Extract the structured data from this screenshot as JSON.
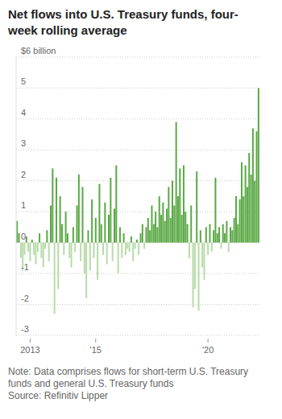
{
  "chart_data": {
    "type": "bar",
    "title": "Net flows into U.S. Treasury funds, four-week rolling average",
    "note": "Note: Data comprises flows for short-term U.S. Treasury funds and general U.S. Treasury funds",
    "source": "Source: Refinitiv Lipper",
    "categories": [
      null,
      null,
      null,
      null,
      null,
      null,
      null,
      "2013",
      null,
      null,
      null,
      null,
      null,
      null,
      null,
      null,
      null,
      null,
      null,
      null,
      null,
      null,
      null,
      null,
      null,
      null,
      null,
      null,
      null,
      null,
      null,
      null,
      null,
      null,
      null,
      null,
      null,
      null,
      null,
      null,
      null,
      null,
      "'15",
      null,
      null,
      null,
      null,
      null,
      null,
      null,
      null,
      null,
      null,
      null,
      null,
      null,
      null,
      null,
      null,
      null,
      null,
      null,
      null,
      null,
      null,
      null,
      null,
      null,
      null,
      null,
      null,
      null,
      null,
      null,
      null,
      null,
      null,
      null,
      null,
      null,
      null,
      null,
      null,
      null,
      null,
      null,
      null,
      null,
      null,
      null,
      null,
      null,
      null,
      null,
      null,
      null,
      null,
      null,
      null,
      null,
      null,
      null,
      "'20",
      null,
      null,
      null,
      null,
      null,
      null,
      null,
      null,
      null,
      null,
      null,
      null,
      null,
      null,
      null,
      null,
      null,
      null,
      null,
      null,
      null,
      null,
      null,
      null,
      null,
      null,
      null
    ],
    "values": [
      0.7,
      0.3,
      -0.5,
      -0.9,
      -0.4,
      0.2,
      -0.3,
      -0.6,
      0.1,
      -0.4,
      -0.7,
      -0.3,
      0.3,
      -0.5,
      -0.8,
      -0.2,
      0.4,
      -0.6,
      1.2,
      2.4,
      -2.3,
      2.1,
      -1.5,
      1.5,
      0.6,
      -0.4,
      1.0,
      0.3,
      -0.5,
      -0.8,
      0.5,
      -0.3,
      1.2,
      2.2,
      -0.6,
      1.8,
      -1.0,
      -1.8,
      0.4,
      -0.9,
      1.4,
      -0.5,
      0.8,
      -1.2,
      1.9,
      0.6,
      -0.4,
      1.3,
      -0.7,
      0.9,
      2.1,
      -0.6,
      1.1,
      2.5,
      -1.0,
      0.5,
      -0.5,
      0.3,
      -0.4,
      -0.2,
      -0.3,
      0.2,
      -0.6,
      -0.2,
      0.1,
      -0.4,
      0.3,
      0.6,
      -0.2,
      0.5,
      0.8,
      0.4,
      1.2,
      0.6,
      1.0,
      0.5,
      1.5,
      0.9,
      1.3,
      0.7,
      1.1,
      1.8,
      0.8,
      2.0,
      1.2,
      3.9,
      1.5,
      2.4,
      0.9,
      2.5,
      1.0,
      0.6,
      -0.5,
      1.2,
      -2.1,
      -1.5,
      2.3,
      -2.2,
      0.4,
      -0.8,
      -1.2,
      0.5,
      -0.4,
      0.6,
      -0.3,
      0.4,
      2.1,
      0.3,
      0.5,
      -0.2,
      0.6,
      0.3,
      0.7,
      -0.3,
      0.5,
      0.4,
      0.8,
      1.5,
      0.6,
      1.4,
      2.6,
      1.5,
      2.5,
      1.8,
      2.9,
      2.2,
      3.7,
      2.0,
      3.6,
      5.0
    ],
    "colors": [
      "#5aa845",
      "#5aa845",
      "#b7dba8",
      "#b7dba8",
      "#b7dba8",
      "#5aa845",
      "#b7dba8",
      "#b7dba8",
      "#5aa845",
      "#b7dba8",
      "#b7dba8",
      "#b7dba8",
      "#5aa845",
      "#b7dba8",
      "#b7dba8",
      "#b7dba8",
      "#5aa845",
      "#b7dba8",
      "#5aa845",
      "#5aa845",
      "#b7dba8",
      "#5aa845",
      "#b7dba8",
      "#5aa845",
      "#5aa845",
      "#b7dba8",
      "#5aa845",
      "#5aa845",
      "#b7dba8",
      "#b7dba8",
      "#5aa845",
      "#b7dba8",
      "#5aa845",
      "#5aa845",
      "#b7dba8",
      "#5aa845",
      "#b7dba8",
      "#b7dba8",
      "#5aa845",
      "#b7dba8",
      "#5aa845",
      "#b7dba8",
      "#5aa845",
      "#b7dba8",
      "#5aa845",
      "#5aa845",
      "#b7dba8",
      "#5aa845",
      "#b7dba8",
      "#5aa845",
      "#5aa845",
      "#b7dba8",
      "#5aa845",
      "#5aa845",
      "#b7dba8",
      "#5aa845",
      "#b7dba8",
      "#5aa845",
      "#b7dba8",
      "#b7dba8",
      "#b7dba8",
      "#5aa845",
      "#b7dba8",
      "#b7dba8",
      "#5aa845",
      "#b7dba8",
      "#5aa845",
      "#5aa845",
      "#b7dba8",
      "#5aa845",
      "#5aa845",
      "#5aa845",
      "#5aa845",
      "#5aa845",
      "#5aa845",
      "#5aa845",
      "#5aa845",
      "#5aa845",
      "#5aa845",
      "#5aa845",
      "#5aa845",
      "#5aa845",
      "#5aa845",
      "#5aa845",
      "#5aa845",
      "#5aa845",
      "#5aa845",
      "#5aa845",
      "#5aa845",
      "#5aa845",
      "#5aa845",
      "#5aa845",
      "#b7dba8",
      "#5aa845",
      "#b7dba8",
      "#b7dba8",
      "#5aa845",
      "#b7dba8",
      "#5aa845",
      "#b7dba8",
      "#b7dba8",
      "#5aa845",
      "#b7dba8",
      "#5aa845",
      "#b7dba8",
      "#5aa845",
      "#5aa845",
      "#5aa845",
      "#5aa845",
      "#b7dba8",
      "#5aa845",
      "#5aa845",
      "#5aa845",
      "#b7dba8",
      "#5aa845",
      "#5aa845",
      "#5aa845",
      "#5aa845",
      "#5aa845",
      "#5aa845",
      "#5aa845",
      "#5aa845",
      "#5aa845",
      "#5aa845",
      "#5aa845",
      "#5aa845",
      "#5aa845",
      "#5aa845",
      "#5aa845",
      "#5aa845"
    ],
    "ylim": [
      -3,
      6
    ],
    "yticks": [
      -3,
      -2,
      -1,
      0,
      1,
      2,
      3,
      4,
      5,
      {
        "value": 6,
        "label": "$6 billion"
      }
    ],
    "grid": true
  }
}
